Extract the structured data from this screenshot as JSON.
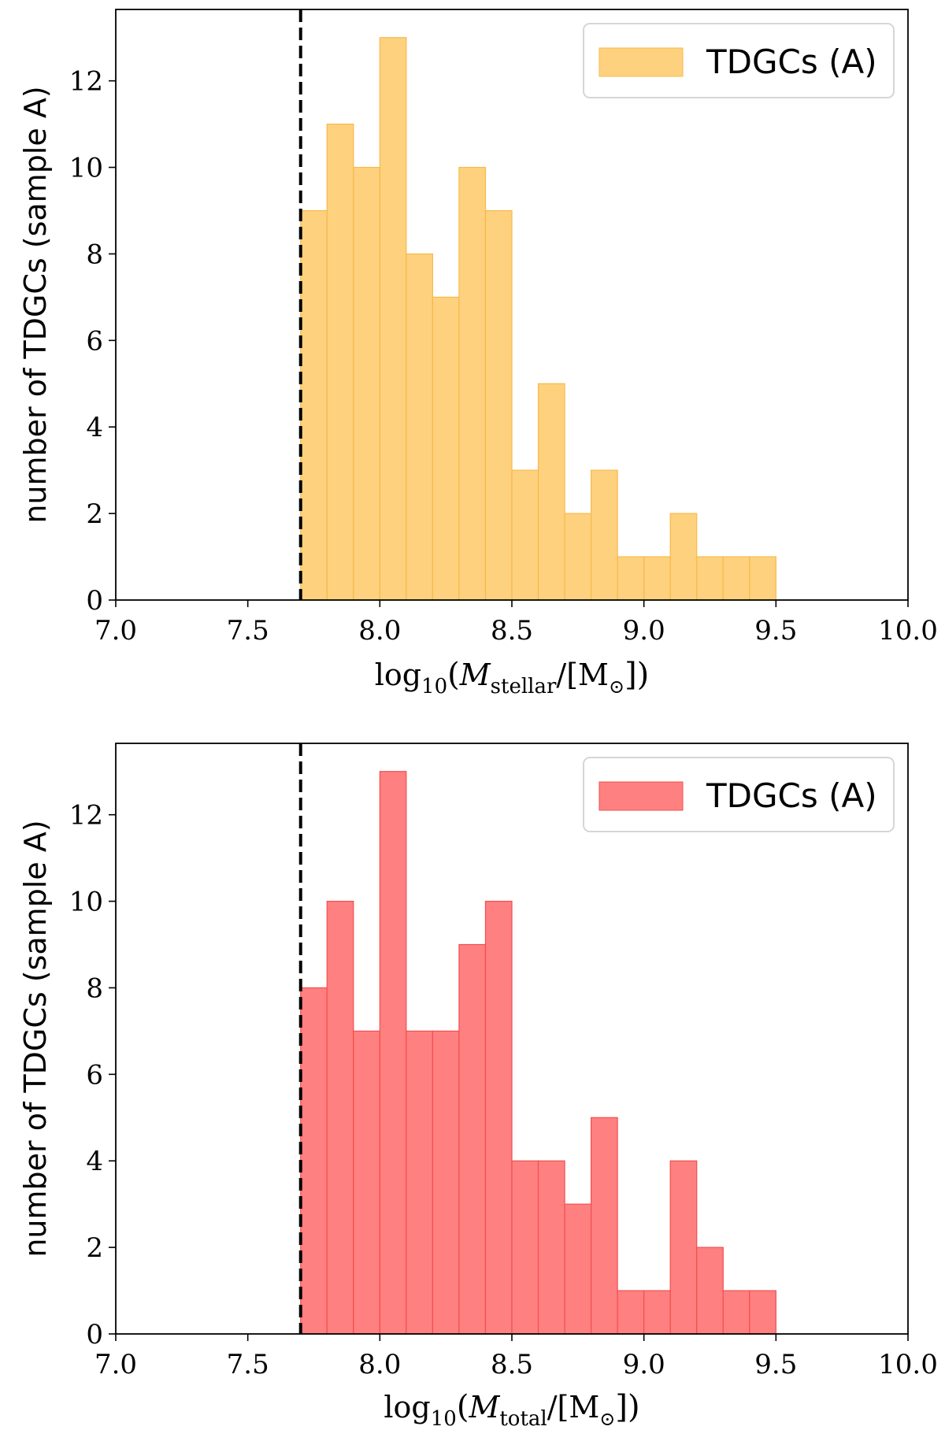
{
  "chart_data": [
    {
      "type": "bar",
      "bin_edges": [
        7.7,
        7.8,
        7.9,
        8.0,
        8.1,
        8.2,
        8.3,
        8.4,
        8.5,
        8.6,
        8.7,
        8.8,
        8.9,
        9.0,
        9.1,
        9.2,
        9.3,
        9.4,
        9.5
      ],
      "values": [
        9,
        11,
        10,
        13,
        8,
        7,
        10,
        9,
        3,
        5,
        2,
        3,
        1,
        1,
        2,
        1,
        1,
        1
      ],
      "xlim": [
        7.0,
        10.0
      ],
      "ylim": [
        0,
        13.65
      ],
      "x_ticks": [
        "7.0",
        "7.5",
        "8.0",
        "8.5",
        "9.0",
        "9.5",
        "10.0"
      ],
      "y_ticks": [
        "0",
        "2",
        "4",
        "6",
        "8",
        "10",
        "12"
      ],
      "ylabel": "number of TDGCs (sample A)",
      "xlabel": {
        "prefix": "log",
        "sub1": "10",
        "open": "(",
        "var": "M",
        "sub2": "stellar",
        "slash": "/[M",
        "sun": "⊙",
        "close": "])"
      },
      "vline_x": 7.7,
      "legend": {
        "label": "TDGCs (A)",
        "position": "top-right"
      },
      "fill_color": "#fdd17e",
      "edge_color": "#f8b94a"
    },
    {
      "type": "bar",
      "bin_edges": [
        7.7,
        7.8,
        7.9,
        8.0,
        8.1,
        8.2,
        8.3,
        8.4,
        8.5,
        8.6,
        8.7,
        8.8,
        8.9,
        9.0,
        9.1,
        9.2,
        9.3,
        9.4,
        9.5
      ],
      "values": [
        8,
        10,
        7,
        13,
        7,
        7,
        9,
        10,
        4,
        4,
        3,
        5,
        1,
        1,
        4,
        2,
        1,
        1
      ],
      "xlim": [
        7.0,
        10.0
      ],
      "ylim": [
        0,
        13.65
      ],
      "x_ticks": [
        "7.0",
        "7.5",
        "8.0",
        "8.5",
        "9.0",
        "9.5",
        "10.0"
      ],
      "y_ticks": [
        "0",
        "2",
        "4",
        "6",
        "8",
        "10",
        "12"
      ],
      "ylabel": "number of TDGCs (sample A)",
      "xlabel": {
        "prefix": "log",
        "sub1": "10",
        "open": "(",
        "var": "M",
        "sub2": "total",
        "slash": "/[M",
        "sun": "⊙",
        "close": "])"
      },
      "vline_x": 7.7,
      "legend": {
        "label": "TDGCs (A)",
        "position": "top-right"
      },
      "fill_color": "#ff8080",
      "edge_color": "#f24f4f"
    }
  ]
}
